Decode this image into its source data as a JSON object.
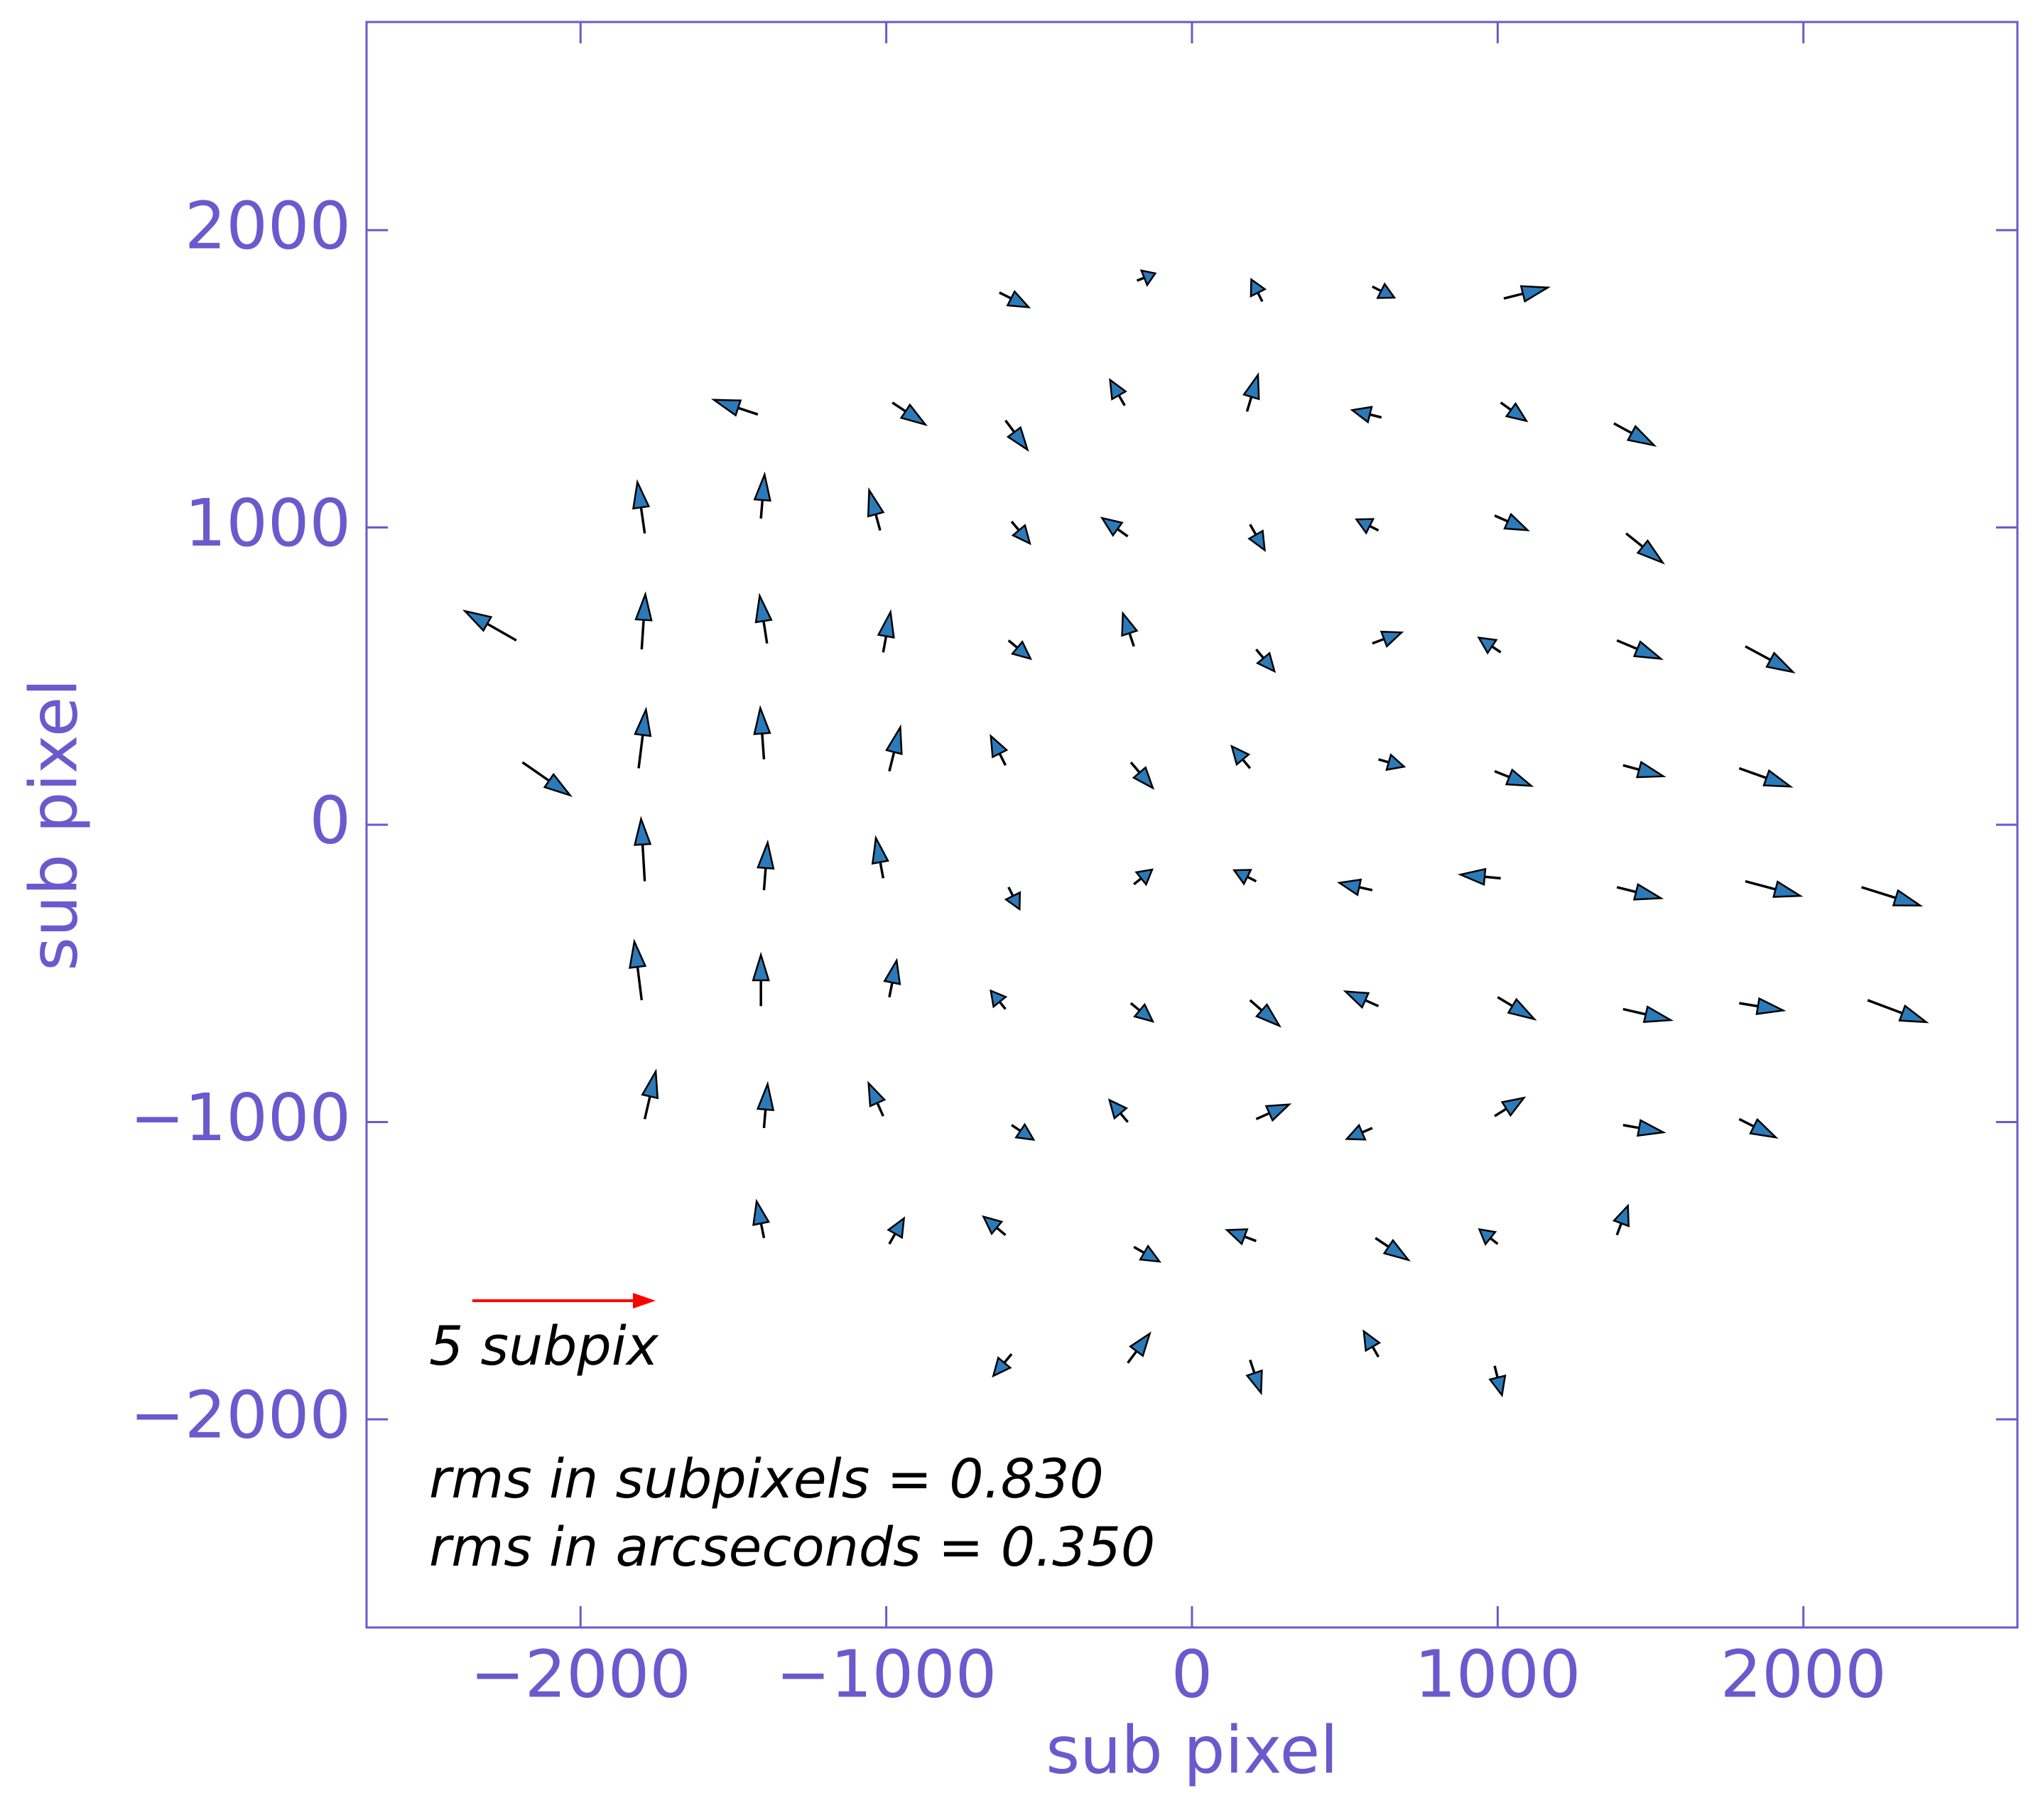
{
  "chart_data": {
    "type": "quiver",
    "xlabel": "sub pixel",
    "ylabel": "sub pixel",
    "xlim": [
      -2700,
      2700
    ],
    "ylim": [
      -2700,
      2700
    ],
    "xticks": [
      -2000,
      -1000,
      0,
      1000,
      2000
    ],
    "yticks": [
      -2000,
      -1000,
      0,
      1000,
      2000
    ],
    "color": "#2b7bba",
    "axis_color": "#6a5acd",
    "key": {
      "u": 5,
      "label": "5 subpix",
      "color": "#ff0000"
    },
    "annotations": [
      "rms in subpixels = 0.830",
      "rms in arcseconds = 0.350"
    ],
    "x": [
      -630,
      -180,
      230,
      590,
      1020,
      -1420,
      -980,
      -610,
      -220,
      180,
      620,
      1010,
      1380,
      -1790,
      -1410,
      -1020,
      -590,
      -210,
      190,
      610,
      990,
      1420,
      -2210,
      -1800,
      -1390,
      -1010,
      -600,
      -190,
      210,
      590,
      1010,
      1390,
      1810,
      -2190,
      -1810,
      -1400,
      -990,
      -610,
      -200,
      190,
      610,
      990,
      1410,
      1790,
      -1790,
      -1400,
      -1010,
      -600,
      -190,
      210,
      590,
      1010,
      1390,
      1810,
      2190,
      -1800,
      -1410,
      -990,
      -610,
      -200,
      190,
      610,
      1000,
      1410,
      1790,
      2210,
      -1790,
      -1400,
      -1010,
      -590,
      -210,
      210,
      590,
      990,
      1410,
      1790,
      -1400,
      -990,
      -610,
      -190,
      210,
      600,
      1000,
      1390,
      -590,
      -210,
      190,
      610,
      990
    ],
    "y": [
      1790,
      1830,
      1760,
      1810,
      1770,
      1380,
      1420,
      1360,
      1410,
      1390,
      1370,
      1420,
      1350,
      980,
      1030,
      990,
      1020,
      970,
      1010,
      990,
      1040,
      980,
      620,
      590,
      610,
      580,
      620,
      600,
      590,
      610,
      580,
      620,
      600,
      210,
      190,
      220,
      180,
      200,
      210,
      190,
      220,
      180,
      200,
      190,
      -190,
      -220,
      -180,
      -210,
      -200,
      -190,
      -220,
      -180,
      -210,
      -190,
      -210,
      -590,
      -610,
      -580,
      -620,
      -600,
      -590,
      -610,
      -580,
      -620,
      -600,
      -590,
      -990,
      -1020,
      -980,
      -1010,
      -1000,
      -990,
      -1020,
      -980,
      -1010,
      -990,
      -1390,
      -1410,
      -1380,
      -1420,
      -1400,
      -1390,
      -1410,
      -1380,
      -1780,
      -1810,
      -1800,
      -1790,
      -1820
    ],
    "u": [
      0.8,
      0.5,
      -0.3,
      0.6,
      1.2,
      -1.2,
      0.9,
      0.6,
      -0.4,
      0.3,
      -0.8,
      0.7,
      1.1,
      -0.2,
      0.1,
      -0.3,
      0.5,
      -0.7,
      0.4,
      -0.6,
      0.9,
      1.0,
      -1.4,
      0.1,
      -0.2,
      0.2,
      0.6,
      -0.3,
      0.5,
      0.8,
      -0.6,
      1.2,
      1.3,
      1.3,
      0.2,
      -0.1,
      0.3,
      -0.4,
      0.6,
      -0.5,
      0.7,
      1.0,
      1.1,
      1.4,
      -0.1,
      0.1,
      -0.2,
      0.3,
      0.5,
      -0.6,
      -0.9,
      -1.1,
      1.2,
      1.5,
      1.6,
      -0.2,
      0.0,
      0.2,
      -0.4,
      0.6,
      0.8,
      -0.9,
      1.0,
      1.3,
      1.2,
      1.6,
      0.3,
      0.1,
      -0.4,
      0.6,
      -0.5,
      0.9,
      -0.7,
      0.8,
      1.1,
      1.0,
      -0.2,
      0.4,
      -0.6,
      0.7,
      -0.8,
      0.9,
      -0.5,
      0.3,
      -0.5,
      0.6,
      0.3,
      -0.4,
      0.2
    ],
    "v": [
      -0.4,
      0.2,
      0.6,
      -0.3,
      0.3,
      0.4,
      -0.6,
      -0.8,
      0.7,
      1.0,
      0.2,
      -0.5,
      -0.6,
      1.4,
      1.2,
      1.1,
      -0.6,
      0.5,
      -0.7,
      0.3,
      -0.4,
      -0.8,
      0.8,
      1.5,
      1.3,
      1.1,
      -0.5,
      0.9,
      -0.6,
      0.3,
      0.4,
      -0.5,
      -0.7,
      -0.9,
      1.6,
      1.4,
      1.2,
      0.8,
      -0.7,
      0.6,
      -0.2,
      -0.4,
      -0.3,
      -0.5,
      1.7,
      1.3,
      1.1,
      -0.6,
      0.4,
      0.3,
      0.2,
      0.1,
      -0.3,
      -0.4,
      -0.5,
      1.6,
      1.4,
      1.0,
      0.5,
      -0.5,
      -0.7,
      0.4,
      -0.6,
      -0.3,
      -0.2,
      -0.6,
      1.3,
      1.2,
      0.9,
      -0.4,
      0.6,
      0.4,
      -0.3,
      0.5,
      -0.2,
      -0.5,
      1.0,
      0.7,
      0.5,
      -0.4,
      0.3,
      -0.6,
      0.4,
      0.8,
      -0.6,
      0.8,
      -0.9,
      0.7,
      -0.8
    ]
  }
}
